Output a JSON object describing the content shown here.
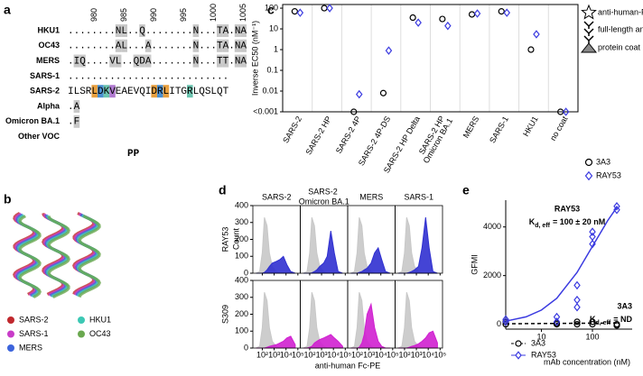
{
  "panels": [
    "a",
    "b",
    "c",
    "d",
    "e"
  ],
  "alignment": {
    "ruler": [
      980,
      985,
      990,
      995,
      1000,
      1005
    ],
    "rows": [
      {
        "label": "HKU1",
        "sequence": "........NL..Q........N...TA.NA"
      },
      {
        "label": "OC43",
        "sequence": "........AL...A.......N...TA.NA"
      },
      {
        "label": "MERS",
        "sequence": ".IQ....VL..QDA.......N...TT.NA"
      },
      {
        "label": "SARS-1",
        "sequence": "..........................."
      },
      {
        "label": "SARS-2",
        "sequence": "ILSRLDKVEAEVQIDRLITGRLQSLQT"
      },
      {
        "label": "Alpha",
        "sequence": ".A"
      },
      {
        "label": "Omicron BA.1",
        "sequence": ".F"
      },
      {
        "label": "Other VOC"
      }
    ],
    "footer": "PP"
  },
  "structure_legend": [
    {
      "label": "SARS-2",
      "color": "#c0282d"
    },
    {
      "label": "SARS-1",
      "color": "#c83cc8"
    },
    {
      "label": "MERS",
      "color": "#3c64dc"
    },
    {
      "label": "HKU1",
      "color": "#3cc8b4"
    },
    {
      "label": "OC43",
      "color": "#6aa84f"
    }
  ],
  "assay_icon": {
    "labels": [
      "anti-human-Fc-HRP",
      "full-length antibody",
      "protein coat"
    ]
  },
  "chart_data": [
    {
      "type": "dot",
      "ylabel": "Inverse EC50 (nM⁻¹)",
      "log_scale": true,
      "categories": [
        "SARS-2",
        "SARS-2 HP",
        "SARS-2 4P",
        "SARS-2 4P-DS",
        "SARS-2 HP Delta",
        "SARS-2 HP Omicron BA.1",
        "MERS",
        "SARS-1",
        "HKU1",
        "no coat"
      ],
      "ylim": [
        0.001,
        150
      ],
      "yticks": [
        100,
        10,
        1,
        0.1,
        0.01,
        {
          "value": 0.001,
          "label": "<0.001"
        }
      ],
      "series": [
        {
          "name": "3A3",
          "color": "#000000",
          "marker": "circle",
          "values": [
            70,
            100,
            0.001,
            0.008,
            35,
            30,
            50,
            70,
            1,
            0.001
          ]
        },
        {
          "name": "RAY53",
          "color": "#3a3ae0",
          "marker": "diamond",
          "values": [
            60,
            100,
            0.007,
            0.9,
            20,
            14,
            55,
            60,
            5.5,
            0.001
          ]
        }
      ]
    },
    {
      "type": "area-grid",
      "columns": [
        "SARS-2",
        "SARS-2 Omicron BA.1",
        "MERS",
        "SARS-1"
      ],
      "rows": [
        "RAY53",
        "S309"
      ],
      "ylabel": "Count",
      "xlabel": "anti-human Fc-PE",
      "log_scale": true,
      "x": [
        30,
        60,
        100,
        150,
        250,
        400,
        700,
        1500,
        3000,
        6000,
        12000,
        25000,
        60000
      ],
      "xlim": [
        16,
        160000
      ],
      "xticks": [
        {
          "value": 100,
          "label": "10²"
        },
        {
          "value": 1000,
          "label": "10³"
        },
        {
          "value": 10000,
          "label": "10⁴"
        },
        {
          "value": 100000,
          "label": "10⁵"
        }
      ],
      "ylim": [
        0,
        400
      ],
      "yticks": [
        0,
        100,
        200,
        300,
        400
      ],
      "control": {
        "color": "#c8c8c8",
        "values": [
          0,
          10,
          120,
          330,
          280,
          120,
          40,
          10,
          0,
          0,
          0,
          0,
          0
        ]
      },
      "panels": [
        [
          {
            "color": "#3030d0",
            "values": [
              0,
              0,
              0,
              5,
              20,
              40,
              60,
              70,
              80,
              100,
              50,
              10,
              0
            ]
          },
          {
            "color": "#3030d0",
            "values": [
              0,
              0,
              0,
              2,
              10,
              20,
              40,
              60,
              100,
              250,
              120,
              10,
              0
            ]
          },
          {
            "color": "#3030d0",
            "values": [
              0,
              0,
              0,
              5,
              10,
              20,
              30,
              60,
              120,
              150,
              80,
              10,
              0
            ]
          },
          {
            "color": "#3030d0",
            "values": [
              0,
              0,
              0,
              0,
              5,
              10,
              20,
              40,
              150,
              330,
              150,
              10,
              0
            ]
          }
        ],
        [
          {
            "color": "#d020d0",
            "values": [
              0,
              0,
              0,
              0,
              5,
              10,
              15,
              20,
              30,
              40,
              60,
              70,
              20
            ]
          },
          {
            "color": "#d020d0",
            "values": [
              0,
              0,
              5,
              10,
              30,
              40,
              50,
              60,
              70,
              80,
              60,
              40,
              10
            ]
          },
          {
            "color": "#d020d0",
            "values": [
              0,
              0,
              0,
              5,
              30,
              80,
              200,
              260,
              120,
              40,
              10,
              0,
              0
            ]
          },
          {
            "color": "#d020d0",
            "values": [
              0,
              0,
              0,
              0,
              5,
              10,
              15,
              25,
              40,
              60,
              90,
              100,
              30
            ]
          }
        ]
      ]
    },
    {
      "type": "scatter",
      "xlabel": "mAb concentration (nM)",
      "ylabel": "GFMI",
      "log_scale": true,
      "xlim": [
        2,
        600
      ],
      "xticks": [
        10,
        100
      ],
      "ylim": [
        -200,
        5100
      ],
      "yticks": [
        0,
        2000,
        4000
      ],
      "series": [
        {
          "name": "3A3",
          "color": "#000000",
          "marker": "circle",
          "x": [
            2,
            2,
            20,
            20,
            50,
            50,
            100,
            100,
            300,
            300
          ],
          "values": [
            0,
            100,
            0,
            50,
            100,
            0,
            0,
            100,
            0,
            -50
          ],
          "fit": {
            "dash": true,
            "x": [
              2,
              5,
              10,
              20,
              50,
              100,
              200,
              300
            ],
            "values": [
              20,
              25,
              30,
              35,
              40,
              45,
              50,
              55
            ]
          }
        },
        {
          "name": "RAY53",
          "color": "#3a3ae0",
          "marker": "diamond",
          "x": [
            2,
            2,
            20,
            20,
            50,
            50,
            50,
            100,
            100,
            100,
            300,
            300
          ],
          "values": [
            100,
            200,
            300,
            100,
            1000,
            1600,
            700,
            3300,
            3800,
            3600,
            4700,
            4850
          ],
          "fit": {
            "dash": false,
            "x": [
              2,
              5,
              10,
              20,
              50,
              100,
              200,
              300
            ],
            "values": [
              125,
              305,
              582,
              1067,
              2133,
              3200,
              4267,
              4800
            ]
          }
        }
      ],
      "annotations": [
        {
          "title": "RAY53",
          "symbol": "K",
          "subscript": "d, eff",
          "text": "= 100 ± 20 nM",
          "color": "#3a3ae0"
        },
        {
          "title": "3A3",
          "symbol": "K",
          "subscript": "d, eff",
          "text": "= ND",
          "color": "#000000"
        }
      ]
    }
  ]
}
